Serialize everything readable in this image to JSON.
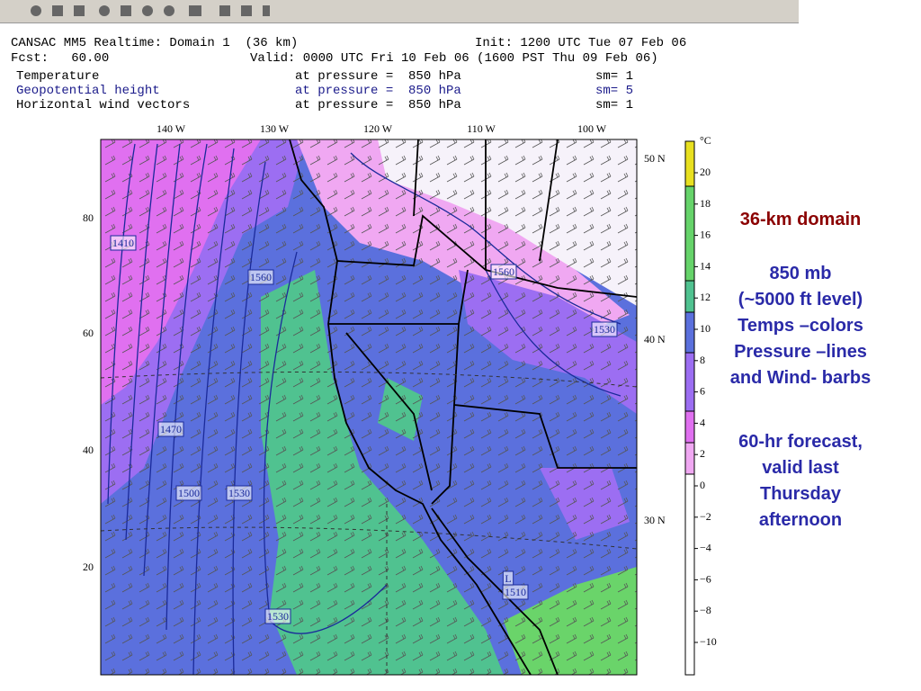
{
  "header": {
    "title": "CANSAC MM5 Realtime: Domain 1  (36 km)",
    "init": "Init: 1200 UTC Tue 07 Feb 06",
    "fcst": "Fcst:   60.00",
    "valid": "Valid: 0000 UTC Fri 10 Feb 06 (1600 PST Thu 09 Feb 06)",
    "fields": [
      {
        "name": "Temperature",
        "level": "at pressure =  850 hPa",
        "sm": "sm= 1"
      },
      {
        "name": "Geopotential height",
        "level": "at pressure =  850 hPa",
        "sm": "sm= 5"
      },
      {
        "name": "Horizontal wind vectors",
        "level": "at pressure =  850 hPa",
        "sm": "sm= 1"
      }
    ]
  },
  "map": {
    "top_labels": [
      "140 W",
      "130 W",
      "120 W",
      "110 W",
      "100 W"
    ],
    "right_labels": [
      "50 N",
      "40 N",
      "30 N"
    ],
    "left_labels": [
      "80",
      "60",
      "40",
      "20"
    ],
    "contour_labels": [
      "1410",
      "1560",
      "1560",
      "1530",
      "1470",
      "1500",
      "1530",
      "1530",
      "L",
      "1510"
    ]
  },
  "colorbar": {
    "unit": "°C",
    "labels": [
      "20",
      "18",
      "16",
      "14",
      "12",
      "10",
      "8",
      "6",
      "4",
      "2",
      "0",
      "−2",
      "−4",
      "−6",
      "−8",
      "−10"
    ]
  },
  "annotation": {
    "heading": "36-km domain",
    "lines": [
      "850 mb",
      "(~5000 ft level)",
      "Temps –colors",
      "Pressure –lines",
      "and Wind- barbs"
    ],
    "lines2": [
      "60-hr forecast,",
      "valid last",
      "Thursday",
      "afternoon"
    ]
  }
}
